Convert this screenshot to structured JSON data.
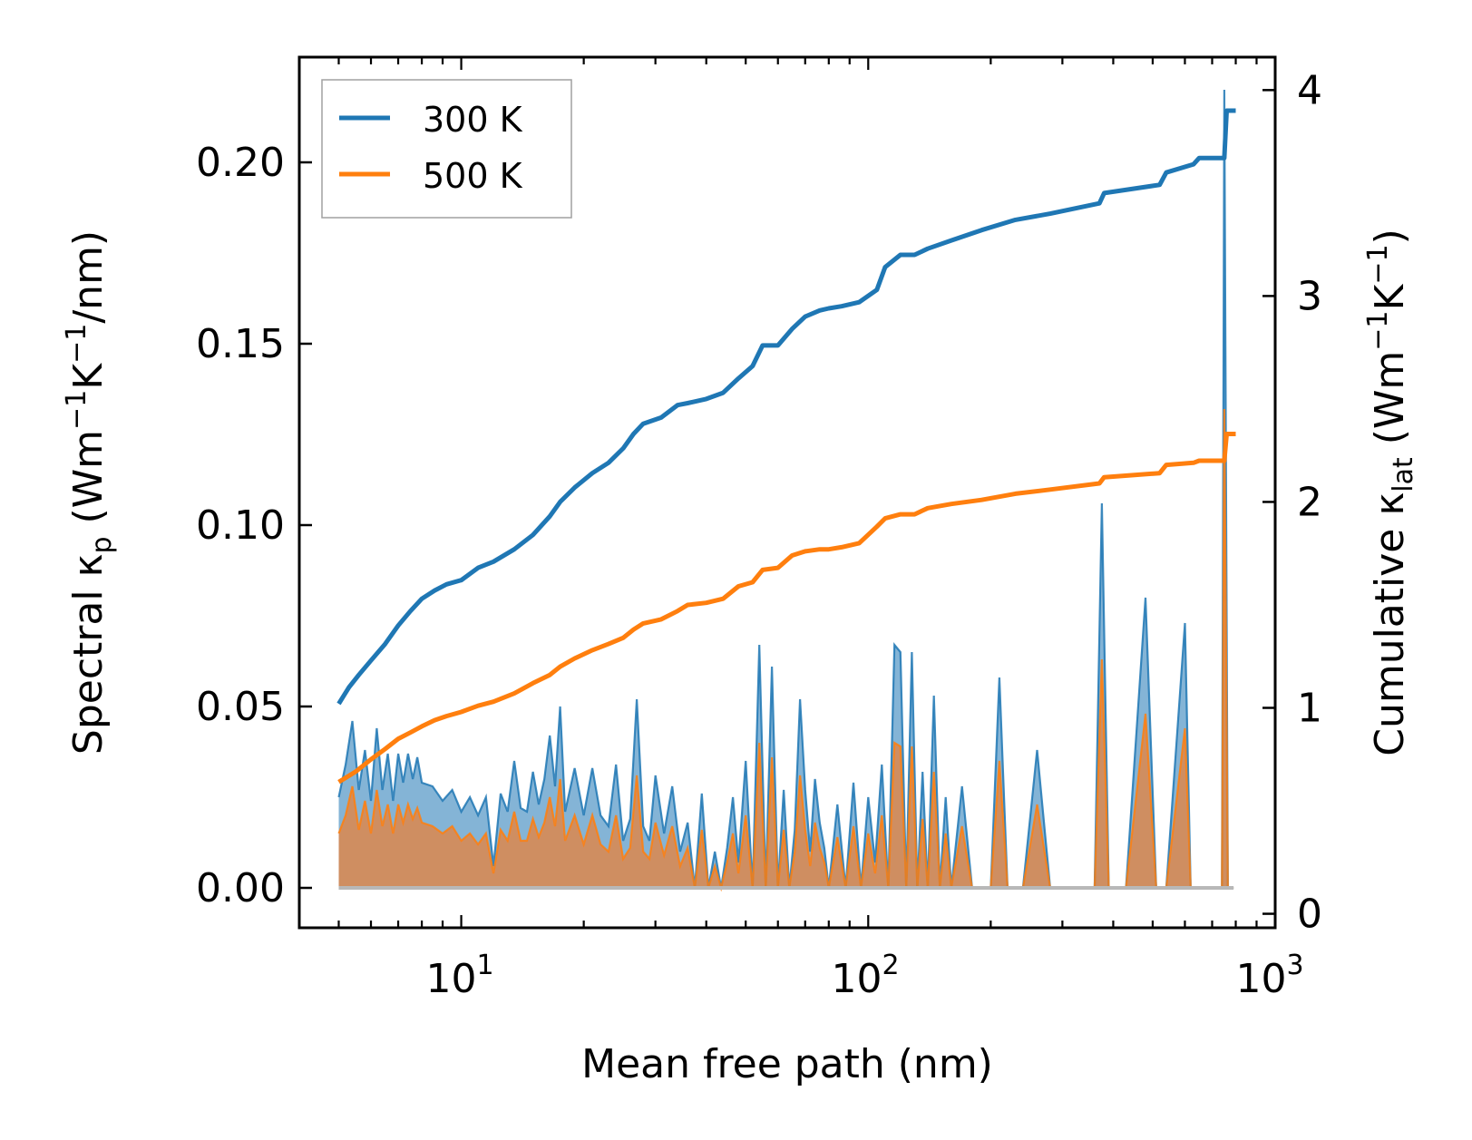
{
  "chart_data": {
    "type": "line",
    "xlabel": "Mean free path (nm)",
    "xscale": "log",
    "xlim": [
      4.0,
      1000
    ],
    "x_ticks": [
      {
        "base": "10",
        "exp": "1",
        "value": 10
      },
      {
        "base": "10",
        "exp": "2",
        "value": 100
      },
      {
        "base": "10",
        "exp": "3",
        "value": 1000
      }
    ],
    "left_axis": {
      "label_parts": {
        "pre": "Spectral κ",
        "sub": "p",
        "mid1": " (Wm",
        "sup1": "−1",
        "mid2": "K",
        "sup2": "−1",
        "post": "/nm)"
      },
      "ylim": [
        -0.011,
        0.229
      ],
      "ticks": [
        0.0,
        0.05,
        0.1,
        0.15,
        0.2
      ],
      "tick_labels": [
        "0.00",
        "0.05",
        "0.10",
        "0.15",
        "0.20"
      ]
    },
    "right_axis": {
      "label_parts": {
        "pre": "Cumulative κ",
        "sub": "lat",
        "mid1": " (Wm",
        "sup1": "−1",
        "mid2": "K",
        "sup2": "−1",
        "post": ")"
      },
      "ylim": [
        -0.068,
        4.16
      ],
      "ticks": [
        0,
        1,
        2,
        3,
        4
      ],
      "tick_labels": [
        "0",
        "1",
        "2",
        "3",
        "4"
      ]
    },
    "legend": {
      "position": "top-left",
      "entries": [
        "300 K",
        "500 K"
      ]
    },
    "colors": {
      "s300": "#1f77b4",
      "s500": "#ff7f0e",
      "fill300": "#1f77b4",
      "fill500": "#e8823a",
      "base": "#b8b8b8"
    },
    "series": [
      {
        "name": "300 K",
        "cumulative": {
          "x": [
            5.0,
            5.3,
            5.6,
            6.0,
            6.5,
            7.0,
            7.5,
            8.0,
            8.6,
            9.2,
            10.0,
            11.0,
            12.0,
            13.5,
            15.0,
            16.5,
            17.5,
            19.0,
            21.0,
            23.0,
            25.0,
            26.5,
            28.0,
            31.0,
            34.0,
            36.0,
            40.0,
            44.0,
            48.0,
            52.0,
            55.0,
            60.0,
            65.0,
            70.0,
            76.0,
            80.0,
            86.0,
            95.0,
            105.0,
            110.0,
            120.0,
            130.0,
            140.0,
            160.0,
            190.0,
            230.0,
            280.0,
            370.0,
            380.0,
            520.0,
            540.0,
            630.0,
            650.0,
            750.0,
            760.0,
            780.0,
            800.0
          ],
          "y": [
            1.02,
            1.1,
            1.16,
            1.23,
            1.31,
            1.4,
            1.47,
            1.53,
            1.57,
            1.6,
            1.62,
            1.68,
            1.71,
            1.77,
            1.84,
            1.93,
            2.0,
            2.07,
            2.14,
            2.19,
            2.26,
            2.33,
            2.38,
            2.41,
            2.47,
            2.48,
            2.5,
            2.53,
            2.6,
            2.66,
            2.76,
            2.76,
            2.84,
            2.9,
            2.93,
            2.94,
            2.95,
            2.97,
            3.03,
            3.14,
            3.2,
            3.2,
            3.23,
            3.27,
            3.32,
            3.37,
            3.4,
            3.45,
            3.5,
            3.54,
            3.6,
            3.64,
            3.67,
            3.67,
            3.9,
            3.9,
            3.9
          ]
        },
        "spectral": {
          "x": [
            5.0,
            5.2,
            5.4,
            5.6,
            5.8,
            6.0,
            6.2,
            6.4,
            6.6,
            6.8,
            7.0,
            7.2,
            7.4,
            7.6,
            7.8,
            8.0,
            8.5,
            9.0,
            9.5,
            10.0,
            10.5,
            11.0,
            11.5,
            12.0,
            12.5,
            13.0,
            13.5,
            14.0,
            14.5,
            15.0,
            15.5,
            16.0,
            16.5,
            17.0,
            17.5,
            18.0,
            19.0,
            20.0,
            21.0,
            22.0,
            23.0,
            24.0,
            25.0,
            26.0,
            27.0,
            28.0,
            29.0,
            30.0,
            31.5,
            33.0,
            34.5,
            36.0,
            37.5,
            39.0,
            40.5,
            42.0,
            43.5,
            45.0,
            46.5,
            48.0,
            50.0,
            52.0,
            54.0,
            56.0,
            58.0,
            60.0,
            62.0,
            64.0,
            66.0,
            68.0,
            70.0,
            72.0,
            74.0,
            76.0,
            78.0,
            80.0,
            84.0,
            88.0,
            92.0,
            96.0,
            100.0,
            104.0,
            108.0,
            112.0,
            116.0,
            120.0,
            124.0,
            128.0,
            132.0,
            136.0,
            140.0,
            145.0,
            150.0,
            155.0,
            160.0,
            170.0,
            180.0,
            190.0,
            200.0,
            210.0,
            220.0,
            230.0,
            240.0,
            260.0,
            280.0,
            300.0,
            330.0,
            360.0,
            375.0,
            390.0,
            430.0,
            480.0,
            510.0,
            525.0,
            540.0,
            600.0,
            620.0,
            635.0,
            650.0,
            700.0,
            740.0,
            750.0,
            765.0,
            780.0,
            790.0
          ],
          "y": [
            0.025,
            0.034,
            0.046,
            0.027,
            0.038,
            0.024,
            0.044,
            0.027,
            0.037,
            0.024,
            0.037,
            0.029,
            0.037,
            0.03,
            0.036,
            0.029,
            0.028,
            0.024,
            0.027,
            0.021,
            0.025,
            0.02,
            0.025,
            0.006,
            0.026,
            0.021,
            0.035,
            0.022,
            0.021,
            0.032,
            0.023,
            0.03,
            0.042,
            0.028,
            0.05,
            0.021,
            0.033,
            0.02,
            0.033,
            0.02,
            0.017,
            0.034,
            0.013,
            0.019,
            0.052,
            0.017,
            0.013,
            0.031,
            0.015,
            0.028,
            0.01,
            0.018,
            0.0,
            0.026,
            0.0,
            0.01,
            0.0,
            0.011,
            0.025,
            0.007,
            0.035,
            0.0,
            0.067,
            0.0,
            0.061,
            0.0,
            0.027,
            0.0,
            0.016,
            0.052,
            0.027,
            0.01,
            0.03,
            0.018,
            0.011,
            0.0,
            0.023,
            0.0,
            0.029,
            0.0,
            0.025,
            0.007,
            0.034,
            0.0,
            0.067,
            0.065,
            0.0,
            0.065,
            0.0,
            0.032,
            0.0,
            0.053,
            0.0,
            0.025,
            0.0,
            0.028,
            0.0,
            0.0,
            0.0,
            0.058,
            0.0,
            0.0,
            0.0,
            0.038,
            0.0,
            0.0,
            0.0,
            0.0,
            0.106,
            0.0,
            0.0,
            0.08,
            0.0,
            0.0,
            0.0,
            0.073,
            0.0,
            0.0,
            0.0,
            0.0,
            0.0,
            0.22,
            0.0,
            0.0,
            0.0
          ]
        }
      },
      {
        "name": "500 K",
        "cumulative": {
          "x": [
            5.0,
            5.5,
            6.0,
            6.5,
            7.0,
            7.5,
            8.0,
            8.6,
            9.2,
            10.0,
            11.0,
            12.0,
            13.5,
            15.0,
            16.5,
            17.5,
            19.0,
            21.0,
            23.0,
            25.0,
            26.5,
            28.0,
            31.0,
            34.0,
            36.0,
            40.0,
            44.0,
            48.0,
            52.0,
            55.0,
            60.0,
            65.0,
            70.0,
            76.0,
            80.0,
            86.0,
            95.0,
            105.0,
            110.0,
            120.0,
            130.0,
            140.0,
            160.0,
            190.0,
            230.0,
            280.0,
            370.0,
            380.0,
            520.0,
            540.0,
            630.0,
            650.0,
            750.0,
            760.0,
            780.0,
            800.0
          ],
          "y": [
            0.64,
            0.69,
            0.75,
            0.8,
            0.85,
            0.88,
            0.91,
            0.94,
            0.96,
            0.98,
            1.01,
            1.03,
            1.07,
            1.12,
            1.16,
            1.2,
            1.24,
            1.28,
            1.31,
            1.34,
            1.38,
            1.41,
            1.43,
            1.47,
            1.5,
            1.51,
            1.53,
            1.59,
            1.61,
            1.67,
            1.68,
            1.74,
            1.76,
            1.77,
            1.77,
            1.78,
            1.8,
            1.88,
            1.92,
            1.94,
            1.94,
            1.97,
            1.99,
            2.01,
            2.04,
            2.06,
            2.09,
            2.12,
            2.14,
            2.18,
            2.19,
            2.2,
            2.2,
            2.33,
            2.33,
            2.33
          ]
        },
        "spectral": {
          "x": [
            5.0,
            5.2,
            5.4,
            5.6,
            5.8,
            6.0,
            6.2,
            6.4,
            6.6,
            6.8,
            7.0,
            7.2,
            7.4,
            7.6,
            7.8,
            8.0,
            8.5,
            9.0,
            9.5,
            10.0,
            10.5,
            11.0,
            11.5,
            12.0,
            12.5,
            13.0,
            13.5,
            14.0,
            14.5,
            15.0,
            15.5,
            16.0,
            16.5,
            17.0,
            17.5,
            18.0,
            19.0,
            20.0,
            21.0,
            22.0,
            23.0,
            24.0,
            25.0,
            26.0,
            27.0,
            28.0,
            29.0,
            30.0,
            31.5,
            33.0,
            34.5,
            36.0,
            37.5,
            39.0,
            40.5,
            42.0,
            43.5,
            45.0,
            46.5,
            48.0,
            50.0,
            52.0,
            54.0,
            56.0,
            58.0,
            60.0,
            62.0,
            64.0,
            66.0,
            68.0,
            70.0,
            72.0,
            74.0,
            76.0,
            78.0,
            80.0,
            84.0,
            88.0,
            92.0,
            96.0,
            100.0,
            104.0,
            108.0,
            112.0,
            116.0,
            120.0,
            124.0,
            128.0,
            132.0,
            136.0,
            140.0,
            145.0,
            150.0,
            155.0,
            160.0,
            170.0,
            180.0,
            190.0,
            200.0,
            210.0,
            220.0,
            230.0,
            240.0,
            260.0,
            280.0,
            300.0,
            330.0,
            360.0,
            375.0,
            390.0,
            430.0,
            480.0,
            510.0,
            525.0,
            540.0,
            600.0,
            620.0,
            635.0,
            650.0,
            700.0,
            740.0,
            750.0,
            765.0,
            780.0,
            790.0
          ],
          "y": [
            0.015,
            0.02,
            0.028,
            0.016,
            0.024,
            0.015,
            0.027,
            0.017,
            0.023,
            0.015,
            0.023,
            0.018,
            0.023,
            0.019,
            0.022,
            0.018,
            0.017,
            0.015,
            0.017,
            0.013,
            0.015,
            0.012,
            0.015,
            0.004,
            0.016,
            0.013,
            0.021,
            0.013,
            0.013,
            0.019,
            0.014,
            0.018,
            0.025,
            0.017,
            0.03,
            0.013,
            0.02,
            0.012,
            0.02,
            0.012,
            0.01,
            0.02,
            0.008,
            0.011,
            0.031,
            0.01,
            0.008,
            0.018,
            0.009,
            0.017,
            0.006,
            0.011,
            0.0,
            0.016,
            0.0,
            0.006,
            0.0,
            0.007,
            0.015,
            0.004,
            0.02,
            0.0,
            0.04,
            0.0,
            0.036,
            0.0,
            0.016,
            0.0,
            0.01,
            0.031,
            0.016,
            0.006,
            0.018,
            0.011,
            0.007,
            0.0,
            0.014,
            0.0,
            0.017,
            0.0,
            0.015,
            0.004,
            0.02,
            0.0,
            0.04,
            0.039,
            0.0,
            0.039,
            0.0,
            0.019,
            0.0,
            0.032,
            0.0,
            0.015,
            0.0,
            0.017,
            0.0,
            0.0,
            0.0,
            0.035,
            0.0,
            0.0,
            0.0,
            0.023,
            0.0,
            0.0,
            0.0,
            0.0,
            0.063,
            0.0,
            0.0,
            0.048,
            0.0,
            0.0,
            0.0,
            0.044,
            0.0,
            0.0,
            0.0,
            0.0,
            0.0,
            0.132,
            0.0,
            0.0,
            0.0
          ]
        }
      }
    ]
  }
}
